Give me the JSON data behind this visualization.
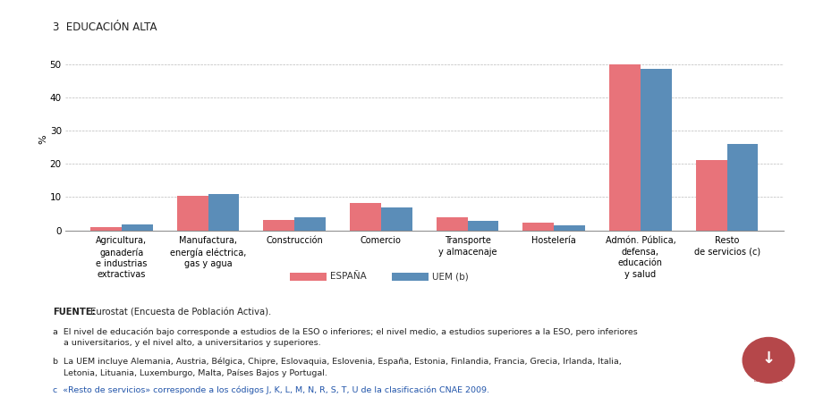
{
  "title": "3  EDUCACIÓN ALTA",
  "ylabel": "%",
  "categories": [
    "Agricultura,\nganadería\ne industrias\nextractivas",
    "Manufactura,\nenergía eléctrica,\ngas y agua",
    "Construcción",
    "Comercio",
    "Transporte\ny almacenaje",
    "Hostelería",
    "Admón. Pública,\ndefensa,\neducación\ny salud",
    "Resto\nde servicios (c)"
  ],
  "spain_values": [
    1.0,
    10.5,
    3.2,
    8.2,
    3.8,
    2.2,
    50.0,
    21.2
  ],
  "uem_values": [
    1.7,
    10.8,
    4.0,
    6.8,
    2.9,
    1.4,
    48.5,
    26.0
  ],
  "ylim": [
    0,
    55
  ],
  "yticks": [
    0,
    10,
    20,
    30,
    40,
    50
  ],
  "spain_color": "#E8737A",
  "uem_color": "#5B8DB8",
  "legend_spain": "ESPAÑA",
  "legend_uem": "UEM (b)",
  "bar_width": 0.36,
  "background_color": "#ffffff",
  "footnote_source_bold": "FUENTE:",
  "footnote_source_normal": " Eurostat (Encuesta de Población Activa).",
  "footnote_a": "a  El nivel de educación bajo corresponde a estudios de la ESO o inferiores; el nivel medio, a estudios superiores a la ESO, pero inferiores\n    a universitarios, y el nivel alto, a universitarios y superiores.",
  "footnote_b": "b  La UEM incluye Alemania, Austria, Bélgica, Chipre, Eslovaquia, Eslovenia, España, Estonia, Finlandia, Francia, Grecia, Irlanda, Italia,\n    Letonia, Lituania, Luxemburgo, Malta, Países Bajos y Portugal.",
  "footnote_c": "c  «Resto de servicios» corresponde a los códigos J, K, L, M, N, R, S, T, U de la clasificación CNAE 2009."
}
